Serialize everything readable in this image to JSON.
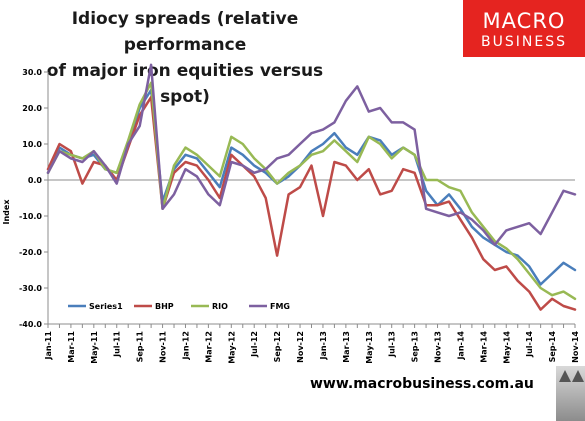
{
  "title": {
    "line1": "Idiocy spreads (relative performance",
    "line2": "of major iron equities versus spot)"
  },
  "logo": {
    "line1": "MACRO",
    "line2": "BUSINESS"
  },
  "footer": {
    "url": "www.macrobusiness.com.au"
  },
  "colors": {
    "Series1": "#4a7ebb",
    "BHP": "#be4b48",
    "RIO": "#98b954",
    "FMG": "#7d60a0",
    "logo_bg": "#e52420"
  },
  "chart_data": {
    "type": "line",
    "ylabel": "Index",
    "xlabel": "",
    "ylim": [
      -40,
      30
    ],
    "yticks": [
      30,
      20,
      10,
      0,
      -10,
      -20,
      -30,
      -40
    ],
    "ytick_labels": [
      "30.0",
      "20.0",
      "10.0",
      "0.0",
      "-10.0",
      "-20.0",
      "-30.0",
      "-40.0"
    ],
    "xlim": [
      "Jan-11",
      "Nov-14"
    ],
    "xtick_labels": [
      "Jan-11",
      "Mar-11",
      "May-11",
      "Jul-11",
      "Sep-11",
      "Nov-11",
      "Jan-12",
      "Mar-12",
      "May-12",
      "Jul-12",
      "Sep-12",
      "Nov-12",
      "Jan-13",
      "Mar-13",
      "May-13",
      "Jul-13",
      "Sep-13",
      "Nov-13",
      "Jan-14",
      "Mar-14",
      "May-14",
      "Jul-14",
      "Sep-14",
      "Nov-14"
    ],
    "grid": false,
    "legend_position": "bottom-left",
    "series": [
      {
        "name": "Series1",
        "color": "#4a7ebb",
        "points": [
          [
            "Jan-11",
            2
          ],
          [
            "Feb-11",
            9
          ],
          [
            "Mar-11",
            7
          ],
          [
            "Apr-11",
            6
          ],
          [
            "May-11",
            7
          ],
          [
            "Jun-11",
            3
          ],
          [
            "Jul-11",
            2
          ],
          [
            "Aug-11",
            10
          ],
          [
            "Sep-11",
            20
          ],
          [
            "Oct-11",
            25
          ],
          [
            "Nov-11",
            -6
          ],
          [
            "Dec-11",
            3
          ],
          [
            "Jan-12",
            7
          ],
          [
            "Feb-12",
            6
          ],
          [
            "Mar-12",
            2
          ],
          [
            "Apr-12",
            -2
          ],
          [
            "May-12",
            9
          ],
          [
            "Jun-12",
            7
          ],
          [
            "Jul-12",
            4
          ],
          [
            "Aug-12",
            2
          ],
          [
            "Sep-12",
            -1
          ],
          [
            "Oct-12",
            1
          ],
          [
            "Nov-12",
            4
          ],
          [
            "Dec-12",
            8
          ],
          [
            "Jan-13",
            10
          ],
          [
            "Feb-13",
            13
          ],
          [
            "Mar-13",
            9
          ],
          [
            "Apr-13",
            7
          ],
          [
            "May-13",
            12
          ],
          [
            "Jun-13",
            11
          ],
          [
            "Jul-13",
            7
          ],
          [
            "Aug-13",
            9
          ],
          [
            "Sep-13",
            7
          ],
          [
            "Oct-13",
            -3
          ],
          [
            "Nov-13",
            -7
          ],
          [
            "Dec-13",
            -4
          ],
          [
            "Jan-14",
            -8
          ],
          [
            "Feb-14",
            -13
          ],
          [
            "Mar-14",
            -16
          ],
          [
            "Apr-14",
            -18
          ],
          [
            "May-14",
            -20
          ],
          [
            "Jun-14",
            -21
          ],
          [
            "Jul-14",
            -24
          ],
          [
            "Aug-14",
            -29
          ],
          [
            "Sep-14",
            -26
          ],
          [
            "Oct-14",
            -23
          ],
          [
            "Nov-14",
            -25
          ]
        ]
      },
      {
        "name": "BHP",
        "color": "#be4b48",
        "points": [
          [
            "Jan-11",
            3
          ],
          [
            "Feb-11",
            10
          ],
          [
            "Mar-11",
            8
          ],
          [
            "Apr-11",
            -1
          ],
          [
            "May-11",
            5
          ],
          [
            "Jun-11",
            4
          ],
          [
            "Jul-11",
            0
          ],
          [
            "Aug-11",
            9
          ],
          [
            "Sep-11",
            18
          ],
          [
            "Oct-11",
            23
          ],
          [
            "Nov-11",
            -8
          ],
          [
            "Dec-11",
            2
          ],
          [
            "Jan-12",
            5
          ],
          [
            "Feb-12",
            4
          ],
          [
            "Mar-12",
            0
          ],
          [
            "Apr-12",
            -5
          ],
          [
            "May-12",
            7
          ],
          [
            "Jun-12",
            4
          ],
          [
            "Jul-12",
            1
          ],
          [
            "Aug-12",
            -5
          ],
          [
            "Sep-12",
            -21
          ],
          [
            "Oct-12",
            -4
          ],
          [
            "Nov-12",
            -2
          ],
          [
            "Dec-12",
            4
          ],
          [
            "Jan-13",
            -10
          ],
          [
            "Feb-13",
            5
          ],
          [
            "Mar-13",
            4
          ],
          [
            "Apr-13",
            0
          ],
          [
            "May-13",
            3
          ],
          [
            "Jun-13",
            -4
          ],
          [
            "Jul-13",
            -3
          ],
          [
            "Aug-13",
            3
          ],
          [
            "Sep-13",
            2
          ],
          [
            "Oct-13",
            -7
          ],
          [
            "Nov-13",
            -7
          ],
          [
            "Dec-13",
            -6
          ],
          [
            "Jan-14",
            -11
          ],
          [
            "Feb-14",
            -16
          ],
          [
            "Mar-14",
            -22
          ],
          [
            "Apr-14",
            -25
          ],
          [
            "May-14",
            -24
          ],
          [
            "Jun-14",
            -28
          ],
          [
            "Jul-14",
            -31
          ],
          [
            "Aug-14",
            -36
          ],
          [
            "Sep-14",
            -33
          ],
          [
            "Oct-14",
            -35
          ],
          [
            "Nov-14",
            -36
          ]
        ]
      },
      {
        "name": "RIO",
        "color": "#98b954",
        "points": [
          [
            "Jan-11",
            2
          ],
          [
            "Feb-11",
            8
          ],
          [
            "Mar-11",
            7
          ],
          [
            "Apr-11",
            6
          ],
          [
            "May-11",
            8
          ],
          [
            "Jun-11",
            3
          ],
          [
            "Jul-11",
            2
          ],
          [
            "Aug-11",
            11
          ],
          [
            "Sep-11",
            21
          ],
          [
            "Oct-11",
            27
          ],
          [
            "Nov-11",
            -8
          ],
          [
            "Dec-11",
            4
          ],
          [
            "Jan-12",
            9
          ],
          [
            "Feb-12",
            7
          ],
          [
            "Mar-12",
            4
          ],
          [
            "Apr-12",
            1
          ],
          [
            "May-12",
            12
          ],
          [
            "Jun-12",
            10
          ],
          [
            "Jul-12",
            6
          ],
          [
            "Aug-12",
            3
          ],
          [
            "Sep-12",
            -1
          ],
          [
            "Oct-12",
            2
          ],
          [
            "Nov-12",
            4
          ],
          [
            "Dec-12",
            7
          ],
          [
            "Jan-13",
            8
          ],
          [
            "Feb-13",
            11
          ],
          [
            "Mar-13",
            8
          ],
          [
            "Apr-13",
            5
          ],
          [
            "May-13",
            12
          ],
          [
            "Jun-13",
            10
          ],
          [
            "Jul-13",
            6
          ],
          [
            "Aug-13",
            9
          ],
          [
            "Sep-13",
            7
          ],
          [
            "Oct-13",
            0
          ],
          [
            "Nov-13",
            0
          ],
          [
            "Dec-13",
            -2
          ],
          [
            "Jan-14",
            -3
          ],
          [
            "Feb-14",
            -9
          ],
          [
            "Mar-14",
            -13
          ],
          [
            "Apr-14",
            -17
          ],
          [
            "May-14",
            -19
          ],
          [
            "Jun-14",
            -22
          ],
          [
            "Jul-14",
            -26
          ],
          [
            "Aug-14",
            -30
          ],
          [
            "Sep-14",
            -32
          ],
          [
            "Oct-14",
            -31
          ],
          [
            "Nov-14",
            -33
          ]
        ]
      },
      {
        "name": "FMG",
        "color": "#7d60a0",
        "points": [
          [
            "Jan-11",
            2
          ],
          [
            "Feb-11",
            8
          ],
          [
            "Mar-11",
            6
          ],
          [
            "Apr-11",
            5
          ],
          [
            "May-11",
            8
          ],
          [
            "Jun-11",
            4
          ],
          [
            "Jul-11",
            -1
          ],
          [
            "Aug-11",
            10
          ],
          [
            "Sep-11",
            15
          ],
          [
            "Oct-11",
            32
          ],
          [
            "Nov-11",
            -8
          ],
          [
            "Dec-11",
            -4
          ],
          [
            "Jan-12",
            3
          ],
          [
            "Feb-12",
            1
          ],
          [
            "Mar-12",
            -4
          ],
          [
            "Apr-12",
            -7
          ],
          [
            "May-12",
            5
          ],
          [
            "Jun-12",
            4
          ],
          [
            "Jul-12",
            2
          ],
          [
            "Aug-12",
            3
          ],
          [
            "Sep-12",
            6
          ],
          [
            "Oct-12",
            7
          ],
          [
            "Nov-12",
            10
          ],
          [
            "Dec-12",
            13
          ],
          [
            "Jan-13",
            14
          ],
          [
            "Feb-13",
            16
          ],
          [
            "Mar-13",
            22
          ],
          [
            "Apr-13",
            26
          ],
          [
            "May-13",
            19
          ],
          [
            "Jun-13",
            20
          ],
          [
            "Jul-13",
            16
          ],
          [
            "Aug-13",
            16
          ],
          [
            "Sep-13",
            14
          ],
          [
            "Oct-13",
            -8
          ],
          [
            "Nov-13",
            -9
          ],
          [
            "Dec-13",
            -10
          ],
          [
            "Jan-14",
            -9
          ],
          [
            "Feb-14",
            -11
          ],
          [
            "Mar-14",
            -14
          ],
          [
            "Apr-14",
            -18
          ],
          [
            "May-14",
            -14
          ],
          [
            "Jun-14",
            -13
          ],
          [
            "Jul-14",
            -12
          ],
          [
            "Aug-14",
            -15
          ],
          [
            "Sep-14",
            -9
          ],
          [
            "Oct-14",
            -3
          ],
          [
            "Nov-14",
            -4
          ]
        ]
      }
    ]
  }
}
